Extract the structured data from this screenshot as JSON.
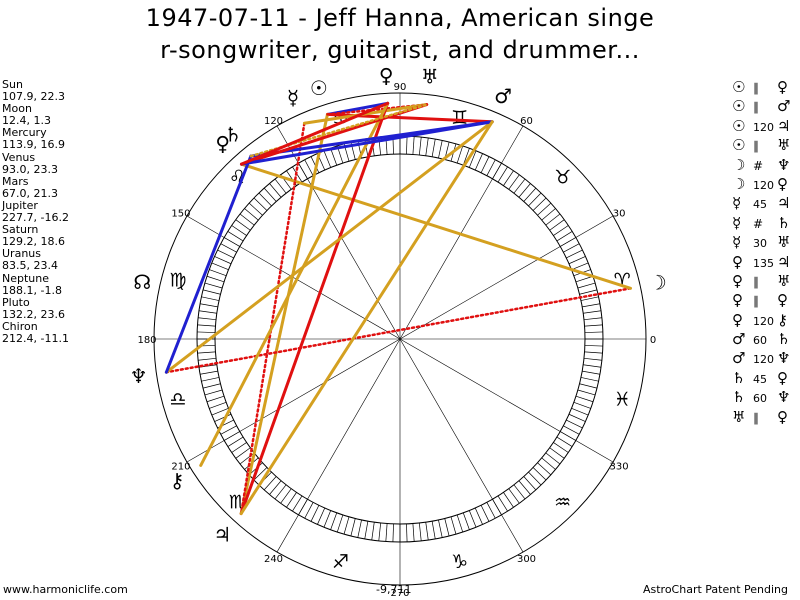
{
  "title_line1": "1947-07-11 - Jeff Hanna, American singe",
  "title_line2": "r-songwriter, guitarist, and drummer...",
  "planets": [
    {
      "name": "Sun",
      "value": "107.9, 22.3"
    },
    {
      "name": "Moon",
      "value": "12.4, 1.3"
    },
    {
      "name": "Mercury",
      "value": "113.9, 16.9"
    },
    {
      "name": "Venus",
      "value": "93.0, 23.3"
    },
    {
      "name": "Mars",
      "value": "67.0, 21.3"
    },
    {
      "name": "Jupiter",
      "value": "227.7, -16.2"
    },
    {
      "name": "Saturn",
      "value": "129.2, 18.6"
    },
    {
      "name": "Uranus",
      "value": "83.5, 23.4"
    },
    {
      "name": "Neptune",
      "value": "188.1, -1.8"
    },
    {
      "name": "Pluto",
      "value": "132.2, 23.6"
    },
    {
      "name": "Chiron",
      "value": "212.4, -11.1"
    }
  ],
  "aspects": [
    {
      "a": "☉",
      "aspect": "∥",
      "b": "♀"
    },
    {
      "a": "☉",
      "aspect": "∥",
      "b": "♂"
    },
    {
      "a": "☉",
      "aspect": "120",
      "b": "♃"
    },
    {
      "a": "☉",
      "aspect": "∥",
      "b": "♅"
    },
    {
      "a": "☽",
      "aspect": "#",
      "b": "♆"
    },
    {
      "a": "☽",
      "aspect": "120",
      "b": "♀"
    },
    {
      "a": "☿",
      "aspect": "45",
      "b": "♃"
    },
    {
      "a": "☿",
      "aspect": "#",
      "b": "♄"
    },
    {
      "a": "☿",
      "aspect": "30",
      "b": "♅"
    },
    {
      "a": "♀",
      "aspect": "135",
      "b": "♃"
    },
    {
      "a": "♀",
      "aspect": "∥",
      "b": "♅"
    },
    {
      "a": "♀",
      "aspect": "∥",
      "b": "♀"
    },
    {
      "a": "♀",
      "aspect": "120",
      "b": "⚷"
    },
    {
      "a": "♂",
      "aspect": "60",
      "b": "♄"
    },
    {
      "a": "♂",
      "aspect": "120",
      "b": "♆"
    },
    {
      "a": "♄",
      "aspect": "45",
      "b": "♀"
    },
    {
      "a": "♄",
      "aspect": "60",
      "b": "♆"
    },
    {
      "a": "♅",
      "aspect": "∥",
      "b": "♀"
    }
  ],
  "degree_labels": [
    "0",
    "30",
    "60",
    "90",
    "120",
    "150",
    "180",
    "210",
    "240",
    "270",
    "300",
    "330"
  ],
  "zodiac": [
    {
      "glyph": "♈",
      "lon": 15
    },
    {
      "glyph": "♉",
      "lon": 45
    },
    {
      "glyph": "♊",
      "lon": 75
    },
    {
      "glyph": "♋",
      "lon": 105
    },
    {
      "glyph": "♌",
      "lon": 135
    },
    {
      "glyph": "♍",
      "lon": 165
    },
    {
      "glyph": "♎",
      "lon": 195
    },
    {
      "glyph": "♏",
      "lon": 225
    },
    {
      "glyph": "♐",
      "lon": 255
    },
    {
      "glyph": "♑",
      "lon": 285
    },
    {
      "glyph": "♒",
      "lon": 315
    },
    {
      "glyph": "♓",
      "lon": 345
    }
  ],
  "chart_planets": [
    {
      "glyph": "☉",
      "lon": 107.9
    },
    {
      "glyph": "☽",
      "lon": 12.4
    },
    {
      "glyph": "☿",
      "lon": 113.9
    },
    {
      "glyph": "♀",
      "lon": 93.0
    },
    {
      "glyph": "♂",
      "lon": 67.0
    },
    {
      "glyph": "♃",
      "lon": 227.7
    },
    {
      "glyph": "♄",
      "lon": 129.2
    },
    {
      "glyph": "♅",
      "lon": 83.5
    },
    {
      "glyph": "♆",
      "lon": 188.1
    },
    {
      "glyph": "♀",
      "lon": 132.2
    },
    {
      "glyph": "⚷",
      "lon": 212.4
    },
    {
      "glyph": "☊",
      "lon": 167.5
    }
  ],
  "aspect_lines": [
    {
      "from": 107.9,
      "to": 93.0,
      "color": "#2020d0",
      "style": "solid"
    },
    {
      "from": 107.9,
      "to": 67.0,
      "color": "#e01010",
      "style": "solid"
    },
    {
      "from": 107.9,
      "to": 227.7,
      "color": "#d4a020",
      "style": "solid"
    },
    {
      "from": 107.9,
      "to": 83.5,
      "color": "#e01010",
      "style": "dotted"
    },
    {
      "from": 12.4,
      "to": 188.1,
      "color": "#e01010",
      "style": "dotted"
    },
    {
      "from": 12.4,
      "to": 132.2,
      "color": "#d4a020",
      "style": "solid"
    },
    {
      "from": 113.9,
      "to": 227.7,
      "color": "#e01010",
      "style": "dotted"
    },
    {
      "from": 113.9,
      "to": 83.5,
      "color": "#d4a020",
      "style": "solid"
    },
    {
      "from": 93.0,
      "to": 227.7,
      "color": "#e01010",
      "style": "solid"
    },
    {
      "from": 93.0,
      "to": 212.4,
      "color": "#d4a020",
      "style": "solid"
    },
    {
      "from": 67.0,
      "to": 129.2,
      "color": "#2020d0",
      "style": "solid"
    },
    {
      "from": 67.0,
      "to": 188.1,
      "color": "#d4a020",
      "style": "solid"
    },
    {
      "from": 129.2,
      "to": 188.1,
      "color": "#2020d0",
      "style": "solid"
    },
    {
      "from": 83.5,
      "to": 132.2,
      "color": "#e01010",
      "style": "solid"
    },
    {
      "from": 129.2,
      "to": 83.5,
      "color": "#d4a020",
      "style": "dotted"
    },
    {
      "from": 132.2,
      "to": 67.0,
      "color": "#2020d0",
      "style": "solid"
    },
    {
      "from": 93.0,
      "to": 132.2,
      "color": "#e01010",
      "style": "solid"
    },
    {
      "from": 67.0,
      "to": 227.7,
      "color": "#d4a020",
      "style": "solid"
    }
  ],
  "footer_left": "www.harmoniclife.com",
  "footer_center": "-9,711",
  "footer_right": "AstroChart Patent Pending"
}
